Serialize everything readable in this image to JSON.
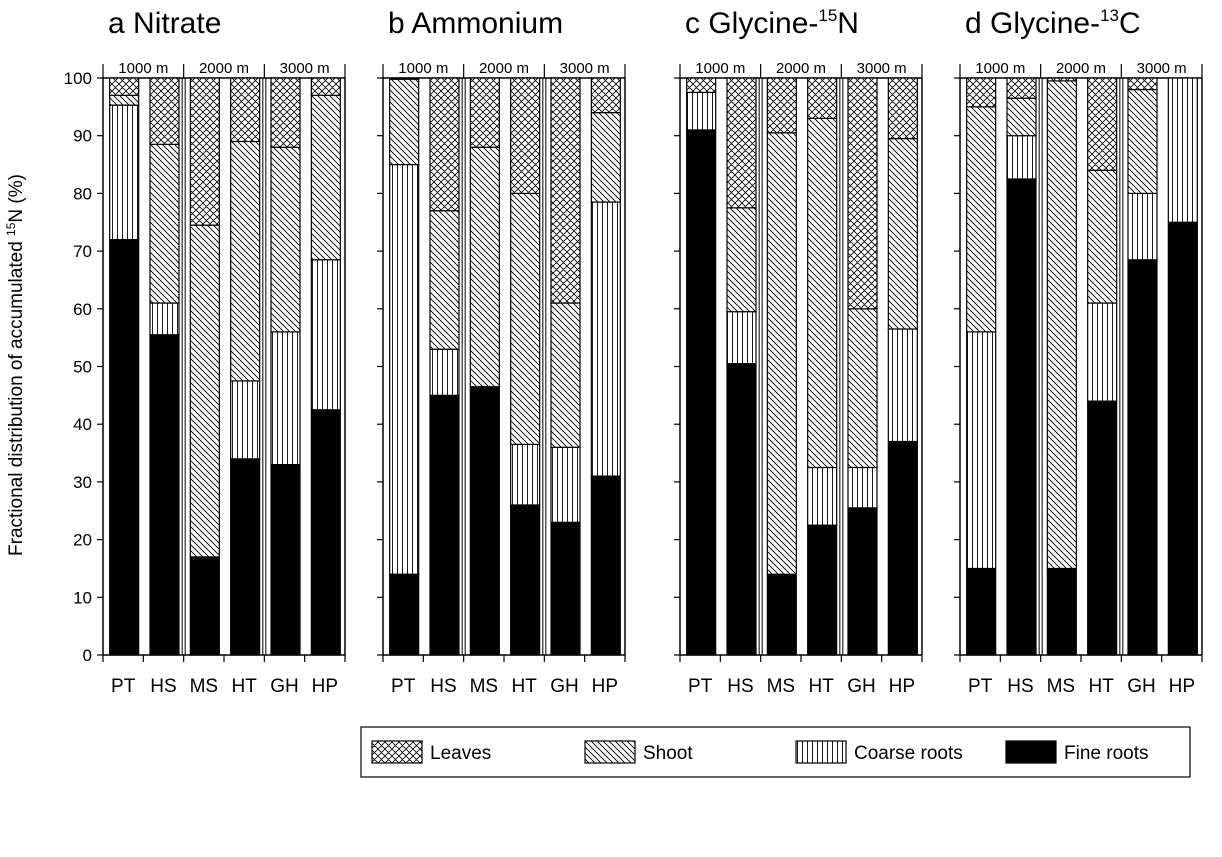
{
  "chart_data": {
    "type": "bar",
    "stacked": true,
    "ylabel": "Fractional distribution of accumulated ",
    "ylabel_sup": "15",
    "ylabel_tail": "N (%)",
    "ylim": [
      0,
      100
    ],
    "yticks": [
      0,
      10,
      20,
      30,
      40,
      50,
      60,
      70,
      80,
      90,
      100
    ],
    "categories": [
      "PT",
      "HS",
      "MS",
      "HT",
      "GH",
      "HP"
    ],
    "elevation_groups": [
      "1000 m",
      "2000 m",
      "3000 m"
    ],
    "legend": {
      "placement": "bottom",
      "entries": [
        {
          "name": "Leaves",
          "pattern": "crosshatch"
        },
        {
          "name": "Shoot",
          "pattern": "diagonal"
        },
        {
          "name": "Coarse roots",
          "pattern": "vertical"
        },
        {
          "name": "Fine roots",
          "pattern": "solid-black"
        }
      ]
    },
    "panels": [
      {
        "letter": "a",
        "title": "Nitrate",
        "title_sup": "",
        "title_tail": "",
        "series": [
          {
            "name": "Fine roots",
            "values": [
              72,
              55.5,
              17,
              34,
              33,
              42.5
            ]
          },
          {
            "name": "Coarse roots",
            "values": [
              23.3,
              5.5,
              0,
              13.5,
              23,
              26
            ]
          },
          {
            "name": "Shoot",
            "values": [
              1.7,
              27.5,
              57.5,
              41.5,
              32,
              28.5
            ]
          },
          {
            "name": "Leaves",
            "values": [
              3,
              11.5,
              25.5,
              11,
              12,
              3
            ]
          }
        ]
      },
      {
        "letter": "b",
        "title": "Ammonium",
        "title_sup": "",
        "title_tail": "",
        "series": [
          {
            "name": "Fine roots",
            "values": [
              14,
              45,
              46.5,
              26,
              23,
              31
            ]
          },
          {
            "name": "Coarse roots",
            "values": [
              71,
              8,
              0,
              10.5,
              13,
              47.5
            ]
          },
          {
            "name": "Shoot",
            "values": [
              14.8,
              24,
              41.5,
              43.5,
              25,
              15.5
            ]
          },
          {
            "name": "Leaves",
            "values": [
              0.2,
              23,
              12,
              20,
              39,
              6
            ]
          }
        ]
      },
      {
        "letter": "c",
        "title": "Glycine-",
        "title_sup": "15",
        "title_tail": "N",
        "series": [
          {
            "name": "Fine roots",
            "values": [
              91,
              50.5,
              14,
              22.5,
              25.5,
              37
            ]
          },
          {
            "name": "Coarse roots",
            "values": [
              6.5,
              9,
              0,
              10,
              7,
              19.5
            ]
          },
          {
            "name": "Shoot",
            "values": [
              0,
              18,
              76.5,
              60.5,
              27.5,
              33
            ]
          },
          {
            "name": "Leaves",
            "values": [
              2.5,
              22.5,
              9.5,
              7,
              40,
              10.5
            ]
          }
        ]
      },
      {
        "letter": "d",
        "title": "Glycine-",
        "title_sup": "13",
        "title_tail": "C",
        "series": [
          {
            "name": "Fine roots",
            "values": [
              15,
              82.5,
              15,
              44,
              68.5,
              75
            ]
          },
          {
            "name": "Coarse roots",
            "values": [
              41,
              7.5,
              0,
              17,
              11.5,
              25
            ]
          },
          {
            "name": "Shoot",
            "values": [
              39,
              6.5,
              84.5,
              23,
              18,
              0
            ]
          },
          {
            "name": "Leaves",
            "values": [
              5,
              3.5,
              0.5,
              16,
              2,
              0
            ]
          }
        ]
      }
    ]
  }
}
